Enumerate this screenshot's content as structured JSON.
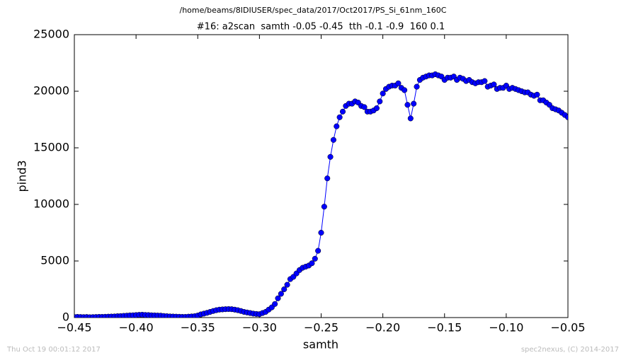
{
  "chart_data": {
    "type": "line",
    "title": "/home/beams/8IDIUSER/spec_data/2017/Oct2017/PS_Si_61nm_160C",
    "subtitle": "#16: a2scan  samth -0.05 -0.45  tth -0.1 -0.9  160 0.1",
    "x_label": "samth",
    "y_label": "pind3",
    "footer_left": "Thu Oct 19 00:01:12 2017",
    "footer_right": "spec2nexus, (C) 2014-2017",
    "xlim": [
      -0.45,
      -0.05
    ],
    "ylim": [
      0,
      25000
    ],
    "xticks": [
      {
        "value": -0.45,
        "label": "−0.45"
      },
      {
        "value": -0.4,
        "label": "−0.40"
      },
      {
        "value": -0.35,
        "label": "−0.35"
      },
      {
        "value": -0.3,
        "label": "−0.30"
      },
      {
        "value": -0.25,
        "label": "−0.25"
      },
      {
        "value": -0.2,
        "label": "−0.20"
      },
      {
        "value": -0.15,
        "label": "−0.15"
      },
      {
        "value": -0.1,
        "label": "−0.10"
      },
      {
        "value": -0.05,
        "label": "−0.05"
      }
    ],
    "yticks": [
      0,
      5000,
      10000,
      15000,
      20000,
      25000
    ],
    "x": [
      -0.45,
      -0.4475,
      -0.445,
      -0.4425,
      -0.44,
      -0.4375,
      -0.435,
      -0.4325,
      -0.43,
      -0.4275,
      -0.425,
      -0.4225,
      -0.42,
      -0.4175,
      -0.415,
      -0.4125,
      -0.41,
      -0.4075,
      -0.405,
      -0.4025,
      -0.4,
      -0.3975,
      -0.395,
      -0.3925,
      -0.39,
      -0.3875,
      -0.385,
      -0.3825,
      -0.38,
      -0.3775,
      -0.375,
      -0.3725,
      -0.37,
      -0.3675,
      -0.365,
      -0.3625,
      -0.36,
      -0.3575,
      -0.355,
      -0.3525,
      -0.35,
      -0.3475,
      -0.345,
      -0.3425,
      -0.34,
      -0.3375,
      -0.335,
      -0.3325,
      -0.33,
      -0.3275,
      -0.325,
      -0.3225,
      -0.32,
      -0.3175,
      -0.315,
      -0.3125,
      -0.31,
      -0.3075,
      -0.305,
      -0.3025,
      -0.3,
      -0.2975,
      -0.295,
      -0.2925,
      -0.29,
      -0.2875,
      -0.285,
      -0.2825,
      -0.28,
      -0.2775,
      -0.275,
      -0.2725,
      -0.27,
      -0.2675,
      -0.265,
      -0.2625,
      -0.26,
      -0.2575,
      -0.255,
      -0.2525,
      -0.25,
      -0.2475,
      -0.245,
      -0.2425,
      -0.24,
      -0.2375,
      -0.235,
      -0.2325,
      -0.23,
      -0.2275,
      -0.225,
      -0.2225,
      -0.22,
      -0.2175,
      -0.215,
      -0.2125,
      -0.21,
      -0.2075,
      -0.205,
      -0.2025,
      -0.2,
      -0.1975,
      -0.195,
      -0.1925,
      -0.19,
      -0.1875,
      -0.185,
      -0.1825,
      -0.18,
      -0.1775,
      -0.175,
      -0.1725,
      -0.17,
      -0.1675,
      -0.165,
      -0.1625,
      -0.16,
      -0.1575,
      -0.155,
      -0.1525,
      -0.15,
      -0.1475,
      -0.145,
      -0.1425,
      -0.14,
      -0.1375,
      -0.135,
      -0.1325,
      -0.13,
      -0.1275,
      -0.125,
      -0.1225,
      -0.12,
      -0.1175,
      -0.115,
      -0.1125,
      -0.11,
      -0.1075,
      -0.105,
      -0.1025,
      -0.1,
      -0.0975,
      -0.095,
      -0.0925,
      -0.09,
      -0.0875,
      -0.085,
      -0.0825,
      -0.08,
      -0.0775,
      -0.075,
      -0.0725,
      -0.07,
      -0.0675,
      -0.065,
      -0.0625,
      -0.06,
      -0.0575,
      -0.055,
      -0.0525,
      -0.05
    ],
    "series": [
      {
        "color": "#0000ff",
        "values": [
          50,
          60,
          50,
          40,
          50,
          30,
          40,
          50,
          60,
          60,
          70,
          80,
          90,
          100,
          120,
          130,
          150,
          170,
          190,
          200,
          220,
          240,
          250,
          230,
          220,
          200,
          190,
          180,
          170,
          140,
          120,
          100,
          90,
          80,
          70,
          60,
          60,
          80,
          100,
          120,
          180,
          280,
          350,
          420,
          500,
          580,
          650,
          700,
          720,
          740,
          750,
          740,
          700,
          650,
          580,
          500,
          450,
          400,
          350,
          320,
          300,
          400,
          500,
          700,
          900,
          1200,
          1700,
          2100,
          2500,
          2900,
          3400,
          3600,
          3900,
          4200,
          4400,
          4500,
          4600,
          4800,
          5200,
          5900,
          7500,
          9800,
          12300,
          14200,
          15700,
          16900,
          17700,
          18200,
          18700,
          18900,
          18900,
          19100,
          19000,
          18700,
          18600,
          18200,
          18200,
          18300,
          18500,
          19100,
          19800,
          20200,
          20400,
          20500,
          20500,
          20700,
          20300,
          20100,
          18800,
          17600,
          18900,
          20400,
          21000,
          21200,
          21300,
          21400,
          21400,
          21500,
          21400,
          21300,
          21000,
          21200,
          21200,
          21300,
          21000,
          21200,
          21100,
          20900,
          21000,
          20800,
          20700,
          20800,
          20800,
          20900,
          20400,
          20500,
          20600,
          20200,
          20300,
          20300,
          20500,
          20200,
          20300,
          20200,
          20100,
          20000,
          19900,
          19900,
          19700,
          19600,
          19700,
          19200,
          19200,
          19000,
          18800,
          18500,
          18400,
          18300,
          18100,
          17900,
          17700
        ]
      }
    ]
  }
}
